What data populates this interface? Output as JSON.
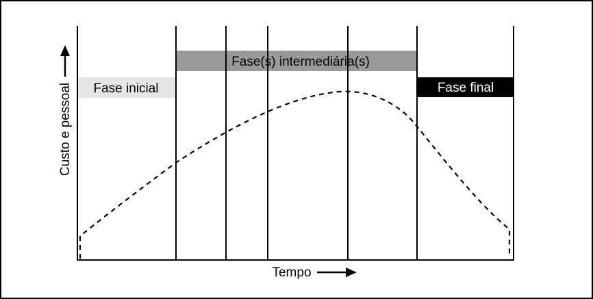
{
  "phases": {
    "initial": {
      "label": "Fase inicial",
      "color": "#e6e6e6",
      "text_color": "#000000"
    },
    "intermediate": {
      "label": "Fase(s) intermediária(s)",
      "color": "#999999",
      "text_color": "#000000"
    },
    "final": {
      "label": "Fase final",
      "color": "#000000",
      "text_color": "#ffffff"
    }
  },
  "axes": {
    "y_label": "Custo e pessoal",
    "x_label": "Tempo",
    "y_arrow_icon": "arrow-up-icon",
    "x_arrow_icon": "arrow-right-icon"
  },
  "curve": {
    "style": "dashed",
    "shape": "rises gradually to a peak in the intermediate phase, then drops sharply during the final phase"
  },
  "colors": {
    "frame": "#000000",
    "background": "#ffffff"
  }
}
